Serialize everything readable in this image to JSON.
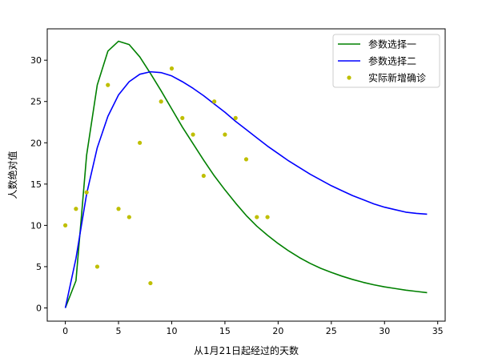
{
  "chart_data": {
    "type": "line",
    "xlabel": "从1月21日起经过的天数",
    "ylabel": "人数绝对值",
    "xlim": [
      -1.7,
      35.7
    ],
    "ylim": [
      -1.6,
      33.8
    ],
    "xticks": [
      0,
      5,
      10,
      15,
      20,
      25,
      30,
      35
    ],
    "yticks": [
      0,
      5,
      10,
      15,
      20,
      25,
      30
    ],
    "grid": false,
    "legend_position": "top-right",
    "series": [
      {
        "name": "参数选择一",
        "kind": "line",
        "color": "#008000",
        "x": [
          0,
          1,
          2,
          3,
          4,
          5,
          6,
          7,
          8,
          9,
          10,
          11,
          12,
          13,
          14,
          15,
          16,
          17,
          18,
          19,
          20,
          21,
          22,
          23,
          24,
          25,
          26,
          27,
          28,
          29,
          30,
          31,
          32,
          33,
          34
        ],
        "y": [
          0,
          3.3,
          18.5,
          27,
          31.1,
          32.3,
          31.9,
          30.4,
          28.4,
          26.3,
          24.1,
          21.9,
          19.9,
          17.9,
          16.0,
          14.3,
          12.7,
          11.2,
          9.9,
          8.8,
          7.8,
          6.9,
          6.1,
          5.4,
          4.8,
          4.3,
          3.85,
          3.45,
          3.1,
          2.8,
          2.55,
          2.35,
          2.15,
          2.0,
          1.85
        ]
      },
      {
        "name": "参数选择二",
        "kind": "line",
        "color": "#0000ff",
        "x": [
          0,
          1,
          2,
          3,
          4,
          5,
          6,
          7,
          8,
          9,
          10,
          11,
          12,
          13,
          14,
          15,
          16,
          17,
          18,
          19,
          20,
          21,
          22,
          23,
          24,
          25,
          26,
          27,
          28,
          29,
          30,
          31,
          32,
          33,
          34
        ],
        "y": [
          0,
          6.0,
          13.8,
          19.4,
          23.2,
          25.8,
          27.4,
          28.3,
          28.6,
          28.5,
          28.1,
          27.4,
          26.6,
          25.7,
          24.7,
          23.7,
          22.6,
          21.6,
          20.6,
          19.6,
          18.7,
          17.8,
          17.0,
          16.2,
          15.5,
          14.8,
          14.2,
          13.6,
          13.1,
          12.6,
          12.2,
          11.9,
          11.6,
          11.45,
          11.35
        ]
      },
      {
        "name": "实际新增确诊",
        "kind": "scatter",
        "color": "#bfbf00",
        "x": [
          0,
          1,
          2,
          3,
          4,
          5,
          6,
          7,
          8,
          9,
          10,
          11,
          12,
          13,
          14,
          15,
          16,
          17,
          18,
          19
        ],
        "y": [
          10,
          12,
          14,
          5,
          27,
          12,
          11,
          20,
          3,
          25,
          29,
          23,
          21,
          16,
          25,
          21,
          23,
          18,
          11,
          11
        ]
      }
    ]
  }
}
